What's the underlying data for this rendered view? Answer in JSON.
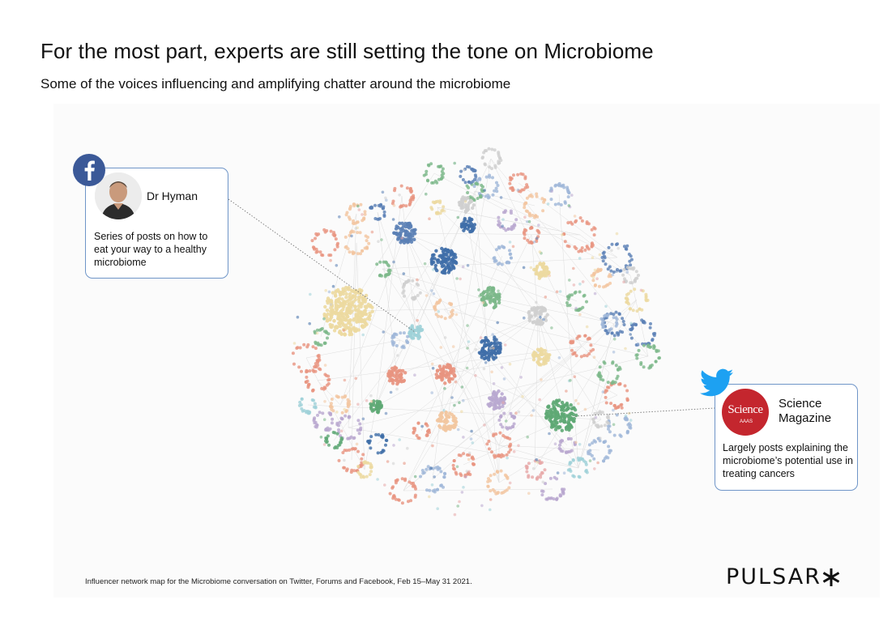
{
  "header": {
    "title": "For the most part, experts are still setting the tone on Microbiome",
    "subtitle": "Some of the voices influencing and amplifying chatter around the microbiome"
  },
  "cards": {
    "hyman": {
      "platform": "facebook-icon",
      "name": "Dr Hyman",
      "description": "Series of posts on how to eat your way to a healthy microbiome"
    },
    "science": {
      "platform": "twitter-icon",
      "name": "Science Magazine",
      "logo_text": "Science",
      "logo_sub": "AAAS",
      "description": "Largely posts explaining the microbiome’s potential use in treating cancers"
    }
  },
  "caption": "Influencer network map for the Microbiome conversation on Twitter, Forums and Facebook, Feb 15–May 31 2021.",
  "brand": {
    "logo_text": "PULSAR",
    "logo_mark": "asterisk-icon"
  },
  "colors": {
    "card_border": "#6f95c8",
    "facebook": "#3b5998",
    "twitter": "#1da1f2",
    "science_red": "#c4262e",
    "clusters": [
      "#e8937f",
      "#5a7fb5",
      "#ecd9a0",
      "#7cb889",
      "#b9a8d0",
      "#f2c6a0",
      "#9fb7d8",
      "#e7a8a8",
      "#9fd1d8",
      "#cfcfcf",
      "#3f6ea8",
      "#5ea874"
    ]
  }
}
